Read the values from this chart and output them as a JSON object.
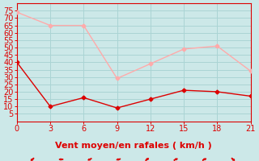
{
  "x": [
    0,
    3,
    6,
    9,
    12,
    15,
    18,
    21
  ],
  "line1_y": [
    74,
    65,
    65,
    29,
    39,
    49,
    51,
    34
  ],
  "line2_y": [
    40,
    10,
    16,
    9,
    15,
    21,
    20,
    17
  ],
  "line1_color": "#ffaaaa",
  "line2_color": "#dd0000",
  "bg_color": "#cce8e8",
  "grid_color": "#aad4d4",
  "xlabel": "Vent moyen/en rafales ( km/h )",
  "xlabel_color": "#dd0000",
  "axis_color": "#dd0000",
  "tick_color": "#dd0000",
  "ylim": [
    0,
    80
  ],
  "xlim": [
    0,
    21
  ],
  "yticks": [
    5,
    10,
    15,
    20,
    25,
    30,
    35,
    40,
    45,
    50,
    55,
    60,
    65,
    70,
    75
  ],
  "xticks": [
    0,
    3,
    6,
    9,
    12,
    15,
    18,
    21
  ],
  "xlabel_fontsize": 8,
  "tick_fontsize": 7,
  "arrow_angles": [
    225,
    270,
    240,
    255,
    45,
    60,
    60,
    135
  ]
}
